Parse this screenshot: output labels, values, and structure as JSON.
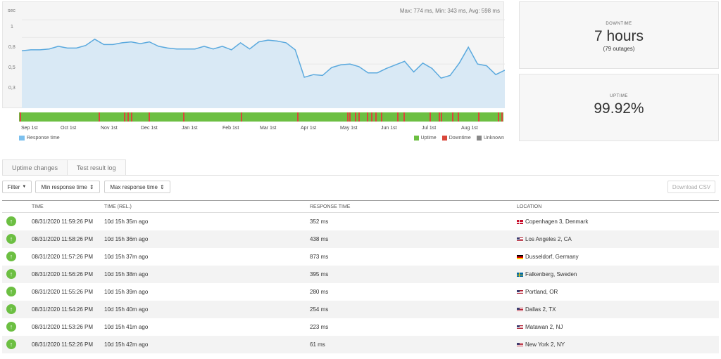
{
  "chart": {
    "stats": "Max: 774 ms, Min: 343 ms, Avg: 598 ms",
    "y_unit": "sec",
    "y_ticks": [
      "1",
      "0,8",
      "0,5",
      "0,3"
    ],
    "months": [
      "Sep 1st",
      "Oct 1st",
      "Nov 1st",
      "Dec 1st",
      "Jan 1st",
      "Feb 1st",
      "Mar 1st",
      "Apr 1st",
      "May 1st",
      "Jun 1st",
      "Jul 1st",
      "Aug 1st"
    ],
    "legend_response": "Response time",
    "legend_uptime": "Uptime",
    "legend_downtime": "Downtime",
    "legend_unknown": "Unknown",
    "colors": {
      "area": "#d9e9f5",
      "line": "#5aa9de",
      "uptime": "#6cbf42",
      "downtime": "#d9473b",
      "unknown": "#888888"
    }
  },
  "chart_data": {
    "type": "area",
    "title": "",
    "ylabel": "sec",
    "ylim": [
      0,
      1.2
    ],
    "x_range": [
      "Aug 25th",
      "Aug 31st"
    ],
    "series": [
      {
        "name": "Response time",
        "values": [
          0.65,
          0.66,
          0.66,
          0.67,
          0.7,
          0.68,
          0.68,
          0.71,
          0.78,
          0.72,
          0.72,
          0.74,
          0.75,
          0.73,
          0.75,
          0.7,
          0.68,
          0.67,
          0.67,
          0.67,
          0.7,
          0.67,
          0.7,
          0.66,
          0.74,
          0.67,
          0.75,
          0.77,
          0.76,
          0.74,
          0.66,
          0.35,
          0.38,
          0.37,
          0.46,
          0.49,
          0.5,
          0.47,
          0.4,
          0.4,
          0.45,
          0.49,
          0.53,
          0.41,
          0.51,
          0.45,
          0.34,
          0.37,
          0.51,
          0.69,
          0.5,
          0.48,
          0.38,
          0.43
        ]
      }
    ],
    "status_strip": {
      "downtime_fractions": [
        0.002,
        0.164,
        0.217,
        0.224,
        0.231,
        0.267,
        0.338,
        0.458,
        0.574,
        0.678,
        0.681,
        0.694,
        0.701,
        0.718,
        0.727,
        0.736,
        0.747,
        0.781,
        0.794,
        0.848,
        0.866,
        0.894,
        0.871,
        0.905,
        0.947,
        0.988,
        0.995
      ]
    }
  },
  "cards": {
    "downtime": {
      "title": "DOWNTIME",
      "value": "7 hours",
      "sub": "(79 outages)"
    },
    "uptime": {
      "title": "UPTIME",
      "value": "99.92%"
    }
  },
  "tabs": [
    "Uptime changes",
    "Test result log"
  ],
  "toolbar": {
    "filter": "Filter",
    "min_response": "Min response time",
    "max_response": "Max response time",
    "download_csv": "Download CSV"
  },
  "table": {
    "headers": [
      "TIME",
      "TIME (REL.)",
      "RESPONSE TIME",
      "LOCATION"
    ],
    "rows": [
      {
        "time": "08/31/2020 11:59:26 PM",
        "rel": "10d 15h 35m ago",
        "resp": "352 ms",
        "loc": "Copenhagen 3, Denmark",
        "flag": "dk"
      },
      {
        "time": "08/31/2020 11:58:26 PM",
        "rel": "10d 15h 36m ago",
        "resp": "438 ms",
        "loc": "Los Angeles 2, CA",
        "flag": "us"
      },
      {
        "time": "08/31/2020 11:57:26 PM",
        "rel": "10d 15h 37m ago",
        "resp": "873 ms",
        "loc": "Dusseldorf, Germany",
        "flag": "de"
      },
      {
        "time": "08/31/2020 11:56:26 PM",
        "rel": "10d 15h 38m ago",
        "resp": "395 ms",
        "loc": "Falkenberg, Sweden",
        "flag": "se"
      },
      {
        "time": "08/31/2020 11:55:26 PM",
        "rel": "10d 15h 39m ago",
        "resp": "280 ms",
        "loc": "Portland, OR",
        "flag": "us"
      },
      {
        "time": "08/31/2020 11:54:26 PM",
        "rel": "10d 15h 40m ago",
        "resp": "254 ms",
        "loc": "Dallas 2, TX",
        "flag": "us"
      },
      {
        "time": "08/31/2020 11:53:26 PM",
        "rel": "10d 15h 41m ago",
        "resp": "223 ms",
        "loc": "Matawan 2, NJ",
        "flag": "us"
      },
      {
        "time": "08/31/2020 11:52:26 PM",
        "rel": "10d 15h 42m ago",
        "resp": "61 ms",
        "loc": "New York 2, NY",
        "flag": "us"
      }
    ]
  }
}
